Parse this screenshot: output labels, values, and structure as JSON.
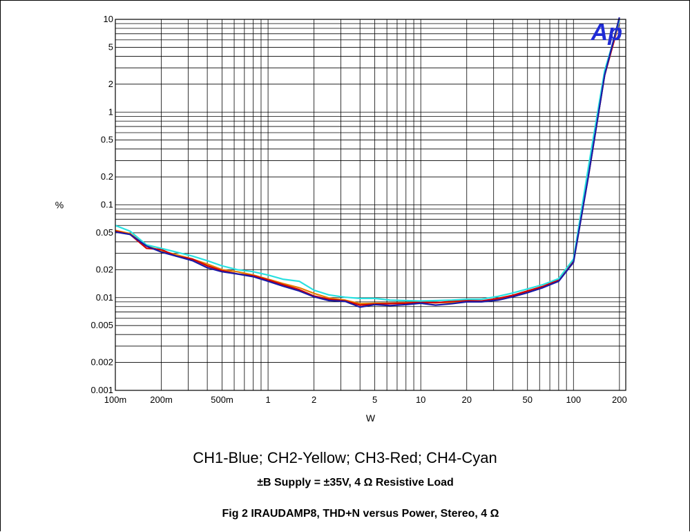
{
  "chart_data": {
    "type": "line",
    "title": "",
    "xlabel": "W",
    "ylabel": "%",
    "x_scale": "log",
    "y_scale": "log",
    "xlim": [
      0.1,
      220
    ],
    "ylim": [
      0.001,
      10
    ],
    "grid": true,
    "x_ticks": [
      0.1,
      0.2,
      0.5,
      1,
      2,
      5,
      10,
      20,
      50,
      100,
      200
    ],
    "x_tick_labels": [
      "100m",
      "200m",
      "500m",
      "1",
      "2",
      "5",
      "10",
      "20",
      "50",
      "100",
      "200"
    ],
    "y_ticks": [
      0.001,
      0.002,
      0.005,
      0.01,
      0.02,
      0.05,
      0.1,
      0.2,
      0.5,
      1,
      2,
      5,
      10
    ],
    "y_tick_labels": [
      "0.001",
      "0.002",
      "0.005",
      "0.01",
      "0.02",
      "0.05",
      "0.1",
      "0.2",
      "0.5",
      "1",
      "2",
      "5",
      "10"
    ],
    "series": [
      {
        "color": "#e67e00",
        "x": [
          0.1,
          0.125,
          0.16,
          0.2,
          0.25,
          0.32,
          0.4,
          0.5,
          0.63,
          0.8,
          1.0,
          1.25,
          1.6,
          2.0,
          2.5,
          3.2,
          4.0,
          5.0,
          6.3,
          8.0,
          10,
          12.5,
          16,
          20,
          25,
          32,
          40,
          50,
          63,
          80,
          100,
          125,
          160,
          200
        ],
        "y": [
          0.053,
          0.049,
          0.036,
          0.032,
          0.029,
          0.026,
          0.023,
          0.02,
          0.019,
          0.0175,
          0.0158,
          0.0142,
          0.0128,
          0.0111,
          0.0099,
          0.0094,
          0.0086,
          0.0087,
          0.0087,
          0.0088,
          0.0089,
          0.0088,
          0.0089,
          0.0091,
          0.0091,
          0.0097,
          0.0105,
          0.0117,
          0.013,
          0.0152,
          0.024,
          0.2,
          2.5,
          9.5
        ]
      },
      {
        "color": "#d40000",
        "x": [
          0.1,
          0.125,
          0.16,
          0.2,
          0.25,
          0.32,
          0.4,
          0.5,
          0.63,
          0.8,
          1.0,
          1.25,
          1.6,
          2.0,
          2.5,
          3.2,
          4.0,
          5.0,
          6.3,
          8.0,
          10,
          12.5,
          16,
          20,
          25,
          32,
          40,
          50,
          63,
          80,
          100,
          125,
          160,
          200
        ],
        "y": [
          0.052,
          0.048,
          0.034,
          0.033,
          0.028,
          0.026,
          0.022,
          0.0195,
          0.018,
          0.0172,
          0.0155,
          0.0138,
          0.0122,
          0.0104,
          0.0096,
          0.0092,
          0.0083,
          0.0085,
          0.0086,
          0.0087,
          0.0089,
          0.0088,
          0.0091,
          0.0093,
          0.0092,
          0.0098,
          0.0106,
          0.0118,
          0.0132,
          0.0155,
          0.025,
          0.2,
          2.5,
          9.5
        ]
      },
      {
        "color": "#29e0e0",
        "x": [
          0.1,
          0.125,
          0.16,
          0.2,
          0.25,
          0.32,
          0.4,
          0.5,
          0.63,
          0.8,
          1.0,
          1.25,
          1.6,
          2.0,
          2.5,
          3.2,
          4.0,
          5.0,
          6.3,
          8.0,
          10,
          12.5,
          16,
          20,
          25,
          32,
          40,
          50,
          63,
          80,
          100,
          125,
          160,
          200
        ],
        "y": [
          0.06,
          0.052,
          0.037,
          0.034,
          0.031,
          0.028,
          0.025,
          0.022,
          0.02,
          0.019,
          0.0175,
          0.0158,
          0.015,
          0.012,
          0.0107,
          0.0101,
          0.0098,
          0.0098,
          0.0094,
          0.0093,
          0.0092,
          0.0093,
          0.0094,
          0.0096,
          0.0096,
          0.0103,
          0.0112,
          0.0124,
          0.0138,
          0.016,
          0.026,
          0.25,
          2.8,
          9.7
        ]
      },
      {
        "color": "#1a1aa6",
        "x": [
          0.1,
          0.125,
          0.16,
          0.2,
          0.25,
          0.32,
          0.4,
          0.5,
          0.63,
          0.8,
          1.0,
          1.25,
          1.6,
          2.0,
          2.5,
          3.2,
          4.0,
          5.0,
          6.3,
          8.0,
          10,
          12.5,
          16,
          20,
          25,
          32,
          40,
          50,
          63,
          80,
          100,
          125,
          160,
          200
        ],
        "y": [
          0.051,
          0.048,
          0.036,
          0.031,
          0.028,
          0.025,
          0.021,
          0.019,
          0.018,
          0.0168,
          0.015,
          0.0133,
          0.0118,
          0.0102,
          0.0093,
          0.0091,
          0.0079,
          0.0084,
          0.0082,
          0.0084,
          0.0087,
          0.0083,
          0.0086,
          0.009,
          0.009,
          0.0094,
          0.0102,
          0.0113,
          0.0128,
          0.015,
          0.024,
          0.2,
          2.5,
          10.5
        ]
      }
    ]
  },
  "logo": {
    "text": "Ap",
    "color": "#1f2bd6"
  },
  "text": {
    "legend": "CH1-Blue; CH2-Yellow; CH3-Red; CH4-Cyan",
    "subtitle": "±B Supply = ±35V, 4 Ω Resistive Load",
    "figure_title": "Fig 2  IRAUDAMP8, THD+N versus Power, Stereo, 4 Ω"
  }
}
